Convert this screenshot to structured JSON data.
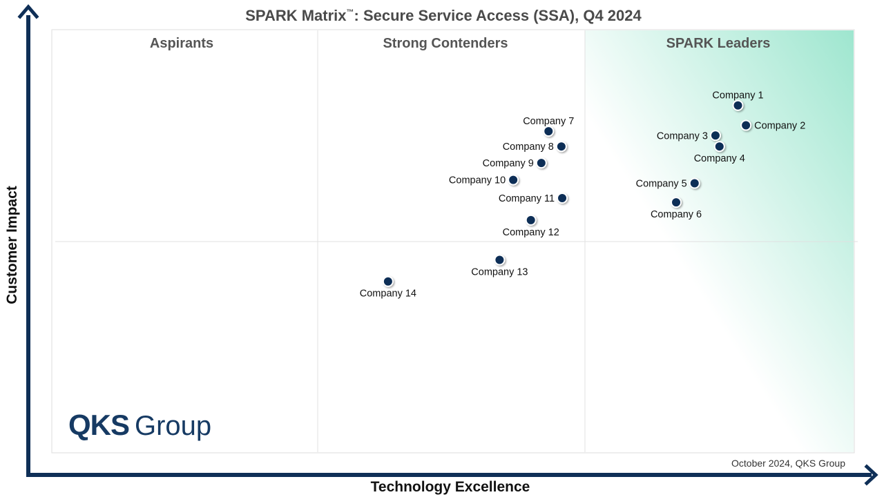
{
  "title": {
    "main": "SPARK Matrix",
    "trademark": "™",
    "rest": ": Secure Service Access (SSA), Q4 2024"
  },
  "quadrants": {
    "left": "Aspirants",
    "middle": "Strong Contenders",
    "right": "SPARK Leaders"
  },
  "axes": {
    "x_label": "Technology Excellence",
    "y_label": "Customer Impact"
  },
  "source_note": "October 2024, QKS Group",
  "logo": {
    "bold": "QKS",
    "light": "Group"
  },
  "colors": {
    "marker": "#0f2f57",
    "axis": "#0f2f57",
    "leader_gradient": "#9ee6cf",
    "grid": "#e0e0e0"
  },
  "chart_data": {
    "type": "scatter",
    "xlabel": "Technology Excellence",
    "ylabel": "Customer Impact",
    "grid": true,
    "points": [
      {
        "label": "Company 1",
        "x": 85.5,
        "y": 82.1,
        "label_pos": "above"
      },
      {
        "label": "Company 2",
        "x": 86.5,
        "y": 77.4,
        "label_pos": "right"
      },
      {
        "label": "Company 3",
        "x": 82.7,
        "y": 75.0,
        "label_pos": "left"
      },
      {
        "label": "Company 4",
        "x": 83.2,
        "y": 72.4,
        "label_pos": "below"
      },
      {
        "label": "Company 5",
        "x": 80.1,
        "y": 63.7,
        "label_pos": "left"
      },
      {
        "label": "Company 6",
        "x": 77.8,
        "y": 59.2,
        "label_pos": "below"
      },
      {
        "label": "Company 7",
        "x": 61.9,
        "y": 76.0,
        "label_pos": "above"
      },
      {
        "label": "Company 8",
        "x": 63.5,
        "y": 72.4,
        "label_pos": "left"
      },
      {
        "label": "Company 9",
        "x": 61.0,
        "y": 68.5,
        "label_pos": "left"
      },
      {
        "label": "Company 10",
        "x": 57.5,
        "y": 64.5,
        "label_pos": "left"
      },
      {
        "label": "Company 11",
        "x": 63.6,
        "y": 60.2,
        "label_pos": "left"
      },
      {
        "label": "Company 12",
        "x": 59.7,
        "y": 55.0,
        "label_pos": "below"
      },
      {
        "label": "Company 13",
        "x": 55.8,
        "y": 45.6,
        "label_pos": "below"
      },
      {
        "label": "Company 14",
        "x": 41.9,
        "y": 40.5,
        "label_pos": "below"
      }
    ]
  }
}
